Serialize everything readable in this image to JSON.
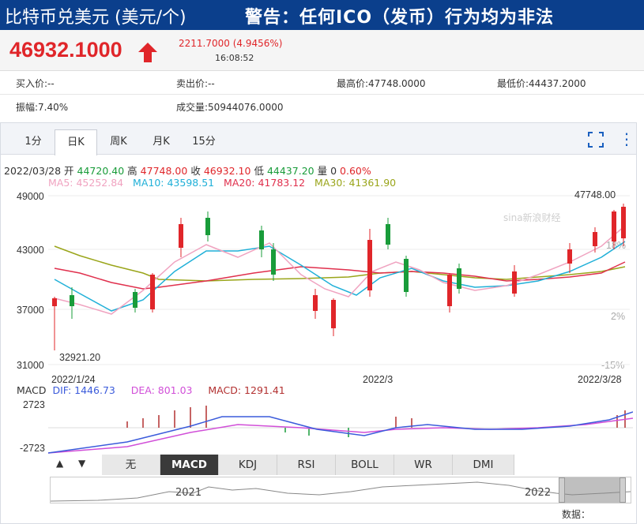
{
  "header": {
    "title": "比特币兑美元 (美元/个)",
    "warning": "警告：任何ICO（发币）行为均为非法"
  },
  "quote": {
    "price": "46932.1000",
    "change": "2211.7000 (4.9456%)",
    "time": "16:08:52"
  },
  "stats": {
    "bid": "买入价:--",
    "ask": "卖出价:--",
    "high": "最高价:47748.0000",
    "low": "最低价:44437.2000",
    "amplitude": "振幅:7.40%",
    "volume": "成交量:50944076.0000"
  },
  "tabs": [
    "1分",
    "日K",
    "周K",
    "月K",
    "15分"
  ],
  "active_tab": "日K",
  "ohlc": {
    "date": "2022/03/28",
    "open_label": "开",
    "open": "44720.40",
    "high_label": "高",
    "high": "47748.00",
    "close_label": "收",
    "close": "46932.10",
    "low_label": "低",
    "low": "44437.20",
    "vol_label": "量",
    "vol": "0",
    "pct": "0.60%"
  },
  "ma_legend": {
    "ma5": "MA5: 45252.84",
    "ma10": "MA10: 43598.51",
    "ma20": "MA20: 41783.12",
    "ma30": "MA30: 41361.90"
  },
  "y_axis": [
    "49000",
    "43000",
    "37000",
    "31000"
  ],
  "pct_axis": [
    "18%",
    "2%",
    "-15%"
  ],
  "annotations": {
    "max": "47748.00",
    "min": "32921.20"
  },
  "x_axis": [
    "2022/1/24",
    "2022/3",
    "2022/3/28"
  ],
  "macd_legend": {
    "name": "MACD",
    "dif": "DIF: 1446.73",
    "dea": "DEA: 801.03",
    "macd": "MACD: 1291.41"
  },
  "macd_axis": [
    "2723",
    "-2723"
  ],
  "indicators": [
    "无",
    "MACD",
    "KDJ",
    "RSI",
    "BOLL",
    "WR",
    "DMI"
  ],
  "active_indicator": "MACD",
  "nav_labels": [
    "2021",
    "2022"
  ],
  "watermark": "sina新浪财经",
  "data_source": "数据：",
  "colors": {
    "up": "#e0262a",
    "down": "#199c3a",
    "ma5": "#f0a3c0",
    "ma10": "#20b0d8",
    "ma20": "#e0304d",
    "ma30": "#9aa51a",
    "header": "#0b3f8c"
  }
}
